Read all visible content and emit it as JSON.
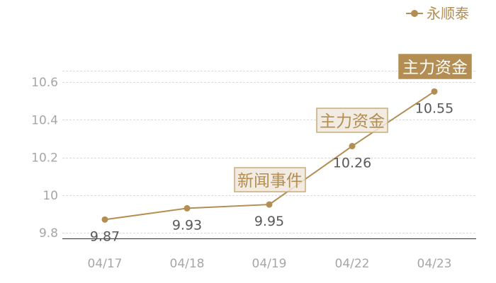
{
  "chart_data": {
    "type": "line",
    "categories": [
      "04/17",
      "04/18",
      "04/19",
      "04/22",
      "04/23"
    ],
    "series": [
      {
        "name": "永顺泰",
        "values": [
          9.87,
          9.93,
          9.95,
          10.26,
          10.55
        ],
        "color": "#b38d52"
      }
    ],
    "data_labels": [
      "9.87",
      "9.93",
      "9.95",
      "10.26",
      "10.55"
    ],
    "yticks": [
      9.8,
      10,
      10.2,
      10.4,
      10.6
    ],
    "ytick_labels": [
      "9.8",
      "10",
      "10.2",
      "10.4",
      "10.6"
    ],
    "ylim": [
      9.77,
      10.66
    ],
    "grid": true,
    "legend_position": "top-right",
    "annotations": [
      {
        "category": "04/19",
        "text": "新闻事件",
        "style": "outline"
      },
      {
        "category": "04/22",
        "text": "主力资金",
        "style": "outline"
      },
      {
        "category": "04/23",
        "text": "主力资金",
        "style": "filled"
      }
    ],
    "title": "",
    "xlabel": "",
    "ylabel": ""
  }
}
